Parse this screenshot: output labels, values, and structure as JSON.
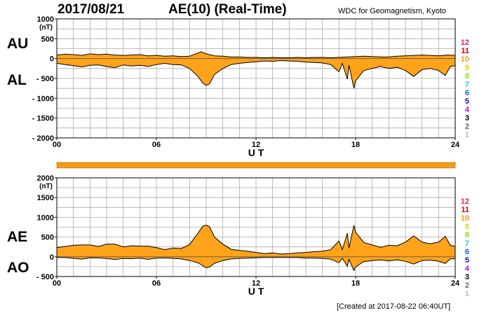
{
  "header": {
    "date": "2017/08/21",
    "title": "AE(10) (Real-Time)",
    "source": "WDC for Geomagnetism, Kyoto"
  },
  "footer": {
    "created": "[Created at 2017-08-22 06:40UT]"
  },
  "colors": {
    "fill": "#ffa31a",
    "outline": "#000000",
    "grid": "#aaaaaa",
    "status_bar": "#f59a18"
  },
  "legend": [
    {
      "label": "12",
      "color": "#e8177e"
    },
    {
      "label": "11",
      "color": "#d60000"
    },
    {
      "label": "10",
      "color": "#f59a18"
    },
    {
      "label": "9",
      "color": "#d8d800"
    },
    {
      "label": "8",
      "color": "#7de800"
    },
    {
      "label": "7",
      "color": "#00d8d8"
    },
    {
      "label": "6",
      "color": "#0066ff"
    },
    {
      "label": "5",
      "color": "#2a00b0"
    },
    {
      "label": "4",
      "color": "#d000d0"
    },
    {
      "label": "3",
      "color": "#000000"
    },
    {
      "label": "2",
      "color": "#666666"
    },
    {
      "label": "1",
      "color": "#bbbbbb"
    }
  ],
  "chart_data": [
    {
      "type": "area",
      "side_labels": [
        "AU",
        "AL"
      ],
      "unit": "(nT)",
      "xlabel": "U T",
      "x_ticks": [
        "00",
        "06",
        "12",
        "18",
        "24"
      ],
      "xlim": [
        0,
        24
      ],
      "ylim": [
        -2000,
        1000
      ],
      "y_ticks": [
        "1000",
        "500",
        "0",
        "- 500",
        "- 1000",
        "- 1500",
        "- 2000"
      ],
      "y_tick_values": [
        1000,
        500,
        0,
        -500,
        -1000,
        -1500,
        -2000
      ],
      "grid": true,
      "series": [
        {
          "values": [
            [
              0,
              90
            ],
            [
              0.5,
              110
            ],
            [
              1,
              100
            ],
            [
              1.5,
              80
            ],
            [
              2,
              120
            ],
            [
              2.5,
              100
            ],
            [
              3,
              110
            ],
            [
              3.5,
              90
            ],
            [
              4,
              80
            ],
            [
              4.5,
              90
            ],
            [
              5,
              100
            ],
            [
              5.5,
              70
            ],
            [
              6,
              80
            ],
            [
              6.5,
              60
            ],
            [
              7,
              70
            ],
            [
              7.5,
              50
            ],
            [
              8,
              60
            ],
            [
              8.5,
              140
            ],
            [
              8.7,
              170
            ],
            [
              9,
              120
            ],
            [
              9.5,
              70
            ],
            [
              10,
              60
            ],
            [
              10.5,
              40
            ],
            [
              11,
              40
            ],
            [
              11.5,
              30
            ],
            [
              12,
              30
            ],
            [
              12.5,
              20
            ],
            [
              13,
              30
            ],
            [
              13.5,
              20
            ],
            [
              14,
              20
            ],
            [
              14.5,
              30
            ],
            [
              15,
              20
            ],
            [
              15.5,
              30
            ],
            [
              16,
              30
            ],
            [
              16.5,
              20
            ],
            [
              17,
              30
            ],
            [
              17.5,
              40
            ],
            [
              18,
              50
            ],
            [
              18.5,
              60
            ],
            [
              19,
              50
            ],
            [
              19.5,
              40
            ],
            [
              20,
              40
            ],
            [
              20.5,
              60
            ],
            [
              21,
              70
            ],
            [
              21.5,
              80
            ],
            [
              22,
              90
            ],
            [
              22.5,
              80
            ],
            [
              23,
              70
            ],
            [
              23.5,
              90
            ],
            [
              24,
              80
            ]
          ]
        },
        {
          "values": [
            [
              0,
              -120
            ],
            [
              0.5,
              -150
            ],
            [
              1,
              -180
            ],
            [
              1.5,
              -210
            ],
            [
              2,
              -170
            ],
            [
              2.5,
              -160
            ],
            [
              3,
              -200
            ],
            [
              3.5,
              -230
            ],
            [
              4,
              -160
            ],
            [
              4.5,
              -190
            ],
            [
              5,
              -170
            ],
            [
              5.5,
              -200
            ],
            [
              6,
              -150
            ],
            [
              6.5,
              -120
            ],
            [
              7,
              -150
            ],
            [
              7.5,
              -160
            ],
            [
              8,
              -250
            ],
            [
              8.5,
              -450
            ],
            [
              8.8,
              -620
            ],
            [
              9,
              -680
            ],
            [
              9.2,
              -640
            ],
            [
              9.5,
              -400
            ],
            [
              10,
              -250
            ],
            [
              10.5,
              -150
            ],
            [
              11,
              -120
            ],
            [
              11.5,
              -100
            ],
            [
              12,
              -80
            ],
            [
              12.5,
              -60
            ],
            [
              13,
              -70
            ],
            [
              13.5,
              -50
            ],
            [
              14,
              -60
            ],
            [
              14.5,
              -70
            ],
            [
              15,
              -90
            ],
            [
              15.5,
              -100
            ],
            [
              16,
              -110
            ],
            [
              16.5,
              -150
            ],
            [
              17,
              -330
            ],
            [
              17.2,
              -120
            ],
            [
              17.5,
              -520
            ],
            [
              17.6,
              -170
            ],
            [
              17.9,
              -750
            ],
            [
              18,
              -560
            ],
            [
              18.5,
              -300
            ],
            [
              19,
              -250
            ],
            [
              19.5,
              -200
            ],
            [
              20,
              -250
            ],
            [
              20.5,
              -220
            ],
            [
              21,
              -300
            ],
            [
              21.5,
              -450
            ],
            [
              22,
              -280
            ],
            [
              22.5,
              -250
            ],
            [
              23,
              -300
            ],
            [
              23.4,
              -430
            ],
            [
              23.7,
              -200
            ],
            [
              24,
              -180
            ]
          ]
        }
      ]
    },
    {
      "type": "area",
      "side_labels": [
        "AE",
        "AO"
      ],
      "unit": "(nT)",
      "xlabel": "U T",
      "x_ticks": [
        "00",
        "06",
        "12",
        "18",
        "24"
      ],
      "xlim": [
        0,
        24
      ],
      "ylim": [
        -500,
        2000
      ],
      "y_ticks": [
        "2000",
        "1500",
        "1000",
        "500",
        "0",
        "- 500"
      ],
      "y_tick_values": [
        2000,
        1500,
        1000,
        500,
        0,
        -500
      ],
      "grid": true,
      "series": [
        {
          "values": [
            [
              0,
              230
            ],
            [
              0.5,
              260
            ],
            [
              1,
              290
            ],
            [
              1.5,
              300
            ],
            [
              2,
              300
            ],
            [
              2.5,
              260
            ],
            [
              3,
              320
            ],
            [
              3.5,
              320
            ],
            [
              4,
              250
            ],
            [
              4.5,
              280
            ],
            [
              5,
              270
            ],
            [
              5.5,
              270
            ],
            [
              6,
              230
            ],
            [
              6.5,
              180
            ],
            [
              7,
              220
            ],
            [
              7.5,
              210
            ],
            [
              8,
              310
            ],
            [
              8.5,
              600
            ],
            [
              8.8,
              780
            ],
            [
              9,
              800
            ],
            [
              9.2,
              760
            ],
            [
              9.5,
              500
            ],
            [
              10,
              320
            ],
            [
              10.5,
              190
            ],
            [
              11,
              160
            ],
            [
              11.5,
              140
            ],
            [
              12,
              110
            ],
            [
              12.5,
              80
            ],
            [
              13,
              100
            ],
            [
              13.5,
              70
            ],
            [
              14,
              80
            ],
            [
              14.5,
              100
            ],
            [
              15,
              110
            ],
            [
              15.5,
              130
            ],
            [
              16,
              140
            ],
            [
              16.5,
              180
            ],
            [
              17,
              400
            ],
            [
              17.2,
              180
            ],
            [
              17.5,
              600
            ],
            [
              17.6,
              220
            ],
            [
              17.9,
              800
            ],
            [
              18,
              620
            ],
            [
              18.5,
              360
            ],
            [
              19,
              300
            ],
            [
              19.5,
              240
            ],
            [
              20,
              290
            ],
            [
              20.5,
              280
            ],
            [
              21,
              370
            ],
            [
              21.5,
              530
            ],
            [
              22,
              370
            ],
            [
              22.5,
              330
            ],
            [
              23,
              370
            ],
            [
              23.4,
              520
            ],
            [
              23.7,
              290
            ],
            [
              24,
              260
            ]
          ]
        },
        {
          "values": [
            [
              0,
              -20
            ],
            [
              0.5,
              -20
            ],
            [
              1,
              -40
            ],
            [
              1.5,
              -60
            ],
            [
              2,
              -25
            ],
            [
              2.5,
              -30
            ],
            [
              3,
              -45
            ],
            [
              3.5,
              -70
            ],
            [
              4,
              -40
            ],
            [
              4.5,
              -50
            ],
            [
              5,
              -35
            ],
            [
              5.5,
              -65
            ],
            [
              6,
              -35
            ],
            [
              6.5,
              -30
            ],
            [
              7,
              -40
            ],
            [
              7.5,
              -55
            ],
            [
              8,
              -95
            ],
            [
              8.5,
              -155
            ],
            [
              8.8,
              -225
            ],
            [
              9,
              -280
            ],
            [
              9.2,
              -260
            ],
            [
              9.5,
              -165
            ],
            [
              10,
              -95
            ],
            [
              10.5,
              -55
            ],
            [
              11,
              -40
            ],
            [
              11.5,
              -35
            ],
            [
              12,
              -25
            ],
            [
              12.5,
              -20
            ],
            [
              13,
              -20
            ],
            [
              13.5,
              -15
            ],
            [
              14,
              -20
            ],
            [
              14.5,
              -20
            ],
            [
              15,
              -35
            ],
            [
              15.5,
              -35
            ],
            [
              16,
              -40
            ],
            [
              16.5,
              -60
            ],
            [
              17,
              -150
            ],
            [
              17.2,
              -40
            ],
            [
              17.5,
              -240
            ],
            [
              17.6,
              -65
            ],
            [
              17.9,
              -350
            ],
            [
              18,
              -255
            ],
            [
              18.5,
              -120
            ],
            [
              19,
              -100
            ],
            [
              19.5,
              -80
            ],
            [
              20,
              -105
            ],
            [
              20.5,
              -80
            ],
            [
              21,
              -115
            ],
            [
              21.5,
              -185
            ],
            [
              22,
              -95
            ],
            [
              22.5,
              -85
            ],
            [
              23,
              -115
            ],
            [
              23.4,
              -170
            ],
            [
              23.7,
              -55
            ],
            [
              24,
              -50
            ]
          ]
        }
      ]
    }
  ]
}
